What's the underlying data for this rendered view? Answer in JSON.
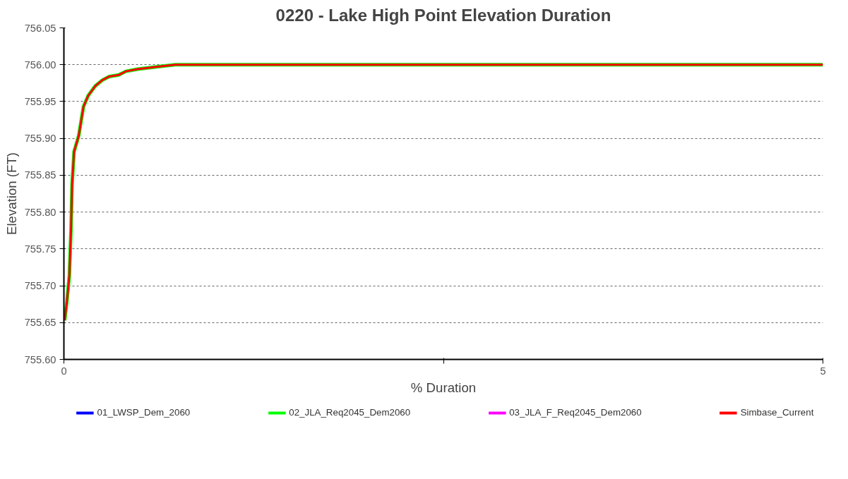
{
  "chart_data": {
    "type": "line",
    "title": "0220 - Lake High Point Elevation Duration",
    "xlabel": "% Duration",
    "ylabel": "Elevation (FT)",
    "x": [
      0.005,
      0.02,
      0.036,
      0.047,
      0.054,
      0.067,
      0.098,
      0.113,
      0.129,
      0.16,
      0.206,
      0.253,
      0.299,
      0.361,
      0.408,
      0.486,
      0.61,
      0.734,
      5
    ],
    "series": [
      {
        "name": "01_LWSP_Dem_2060",
        "color": "#0000ff",
        "values": [
          null,
          null,
          null,
          null,
          null,
          null,
          null,
          null,
          null,
          null,
          null,
          null,
          null,
          null,
          null,
          null,
          null,
          null,
          null
        ]
      },
      {
        "name": "02_JLA_Req2045_Dem2060",
        "color": "#00ff00",
        "values": [
          755.653,
          755.679,
          755.714,
          755.777,
          755.838,
          755.882,
          755.904,
          755.923,
          755.943,
          755.958,
          755.971,
          755.979,
          755.984,
          755.986,
          755.991,
          755.994,
          755.997,
          756.0,
          756.0
        ]
      },
      {
        "name": "03_JLA_F_Req2045_Dem2060",
        "color": "#ff00ff",
        "values": [
          null,
          null,
          null,
          null,
          null,
          null,
          null,
          null,
          null,
          null,
          null,
          null,
          null,
          null,
          null,
          null,
          null,
          null,
          null
        ]
      },
      {
        "name": "Simbase_Current",
        "color": "#ff0000",
        "values": [
          755.653,
          755.679,
          755.714,
          755.777,
          755.838,
          755.882,
          755.904,
          755.923,
          755.943,
          755.958,
          755.971,
          755.979,
          755.984,
          755.986,
          755.991,
          755.994,
          755.997,
          756.0,
          756.0
        ]
      }
    ],
    "xlim": [
      0,
      5
    ],
    "xticks": [
      0,
      {
        "value": 2.5,
        "label": null
      },
      5
    ],
    "ylim": [
      755.6,
      756.05
    ],
    "yticks": [
      {
        "value": 755.6,
        "label": "755.60"
      },
      {
        "value": 755.65,
        "label": "755.65"
      },
      {
        "value": 755.7,
        "label": "755.70"
      },
      {
        "value": 755.75,
        "label": "755.75"
      },
      {
        "value": 755.8,
        "label": "755.80"
      },
      {
        "value": 755.85,
        "label": "755.85"
      },
      {
        "value": 755.9,
        "label": "755.90"
      },
      {
        "value": 755.95,
        "label": "755.95"
      },
      {
        "value": 756.0,
        "label": "756.00"
      },
      {
        "value": 756.05,
        "label": "756.05"
      }
    ],
    "grid": "y",
    "legend": "bottom",
    "marker": "none",
    "line_style": "solid"
  }
}
